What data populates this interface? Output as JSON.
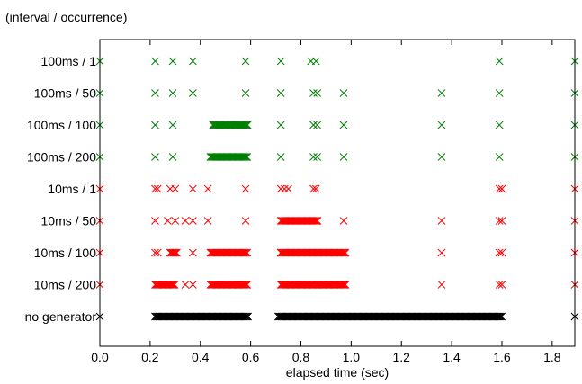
{
  "chart_data": {
    "type": "scatter",
    "title": "(interval / occurrence)",
    "xlabel": "elapsed time (sec)",
    "ylabel": "",
    "xlim": [
      0,
      1.89
    ],
    "xticks": [
      0.0,
      0.2,
      0.4,
      0.6,
      0.8,
      1.0,
      1.2,
      1.4,
      1.6,
      1.8
    ],
    "xtick_labels": [
      "0.0",
      "0.2",
      "0.4",
      "0.6",
      "0.8",
      "1.0",
      "1.2",
      "1.4",
      "1.6",
      "1.8"
    ],
    "categories": [
      "100ms / 1",
      "100ms / 50",
      "100ms / 100",
      "100ms / 200",
      "10ms / 1",
      "10ms / 50",
      "10ms / 100",
      "10ms / 200",
      "no generator"
    ],
    "colors": {
      "100ms": "#008000",
      "10ms": "#ff0000",
      "none": "#000000"
    },
    "marker": "x",
    "grid": false,
    "series": [
      {
        "category": "100ms / 1",
        "color": "#008000",
        "points": [
          0.0,
          0.22,
          0.29,
          0.37,
          0.58,
          0.72,
          0.84,
          0.86,
          1.59,
          1.89
        ]
      },
      {
        "category": "100ms / 50",
        "color": "#008000",
        "points": [
          0.0,
          0.22,
          0.29,
          0.37,
          0.58,
          0.72,
          0.85,
          0.865,
          0.97,
          1.36,
          1.59,
          1.89
        ]
      },
      {
        "category": "100ms / 100",
        "color": "#008000",
        "points": [
          0.0,
          0.22,
          0.29,
          0.72,
          0.85,
          0.865,
          0.97,
          1.36,
          1.59,
          1.89
        ],
        "ranges": [
          [
            0.45,
            0.59
          ]
        ]
      },
      {
        "category": "100ms / 200",
        "color": "#008000",
        "points": [
          0.0,
          0.22,
          0.29,
          0.72,
          0.85,
          0.865,
          0.97,
          1.36,
          1.59,
          1.89
        ],
        "ranges": [
          [
            0.44,
            0.59
          ]
        ]
      },
      {
        "category": "10ms / 1",
        "color": "#ff0000",
        "points": [
          0.0,
          0.22,
          0.23,
          0.28,
          0.3,
          0.37,
          0.43,
          0.58,
          0.72,
          0.735,
          0.75,
          0.85,
          0.86,
          1.59,
          1.6,
          1.89
        ]
      },
      {
        "category": "10ms / 50",
        "color": "#ff0000",
        "points": [
          0.0,
          0.22,
          0.27,
          0.3,
          0.34,
          0.37,
          0.43,
          0.58,
          0.97,
          1.36,
          1.59,
          1.6,
          1.89
        ],
        "ranges": [
          [
            0.72,
            0.87
          ]
        ]
      },
      {
        "category": "10ms / 100",
        "color": "#ff0000",
        "points": [
          0.0,
          0.22,
          0.23,
          0.37,
          0.72,
          1.36,
          1.59,
          1.6,
          1.89
        ],
        "ranges": [
          [
            0.28,
            0.31
          ],
          [
            0.44,
            0.59
          ],
          [
            0.72,
            0.87
          ],
          [
            0.87,
            0.98
          ]
        ]
      },
      {
        "category": "10ms / 200",
        "color": "#ff0000",
        "points": [
          0.0,
          0.34,
          0.37,
          1.36,
          1.59,
          1.6,
          1.89
        ],
        "ranges": [
          [
            0.22,
            0.3
          ],
          [
            0.44,
            0.59
          ],
          [
            0.72,
            0.87
          ],
          [
            0.87,
            0.98
          ]
        ]
      },
      {
        "category": "no generator",
        "color": "#000000",
        "points": [
          0.0,
          1.89
        ],
        "ranges": [
          [
            0.22,
            0.59
          ],
          [
            0.71,
            0.86
          ],
          [
            0.86,
            1.6
          ]
        ]
      }
    ]
  }
}
